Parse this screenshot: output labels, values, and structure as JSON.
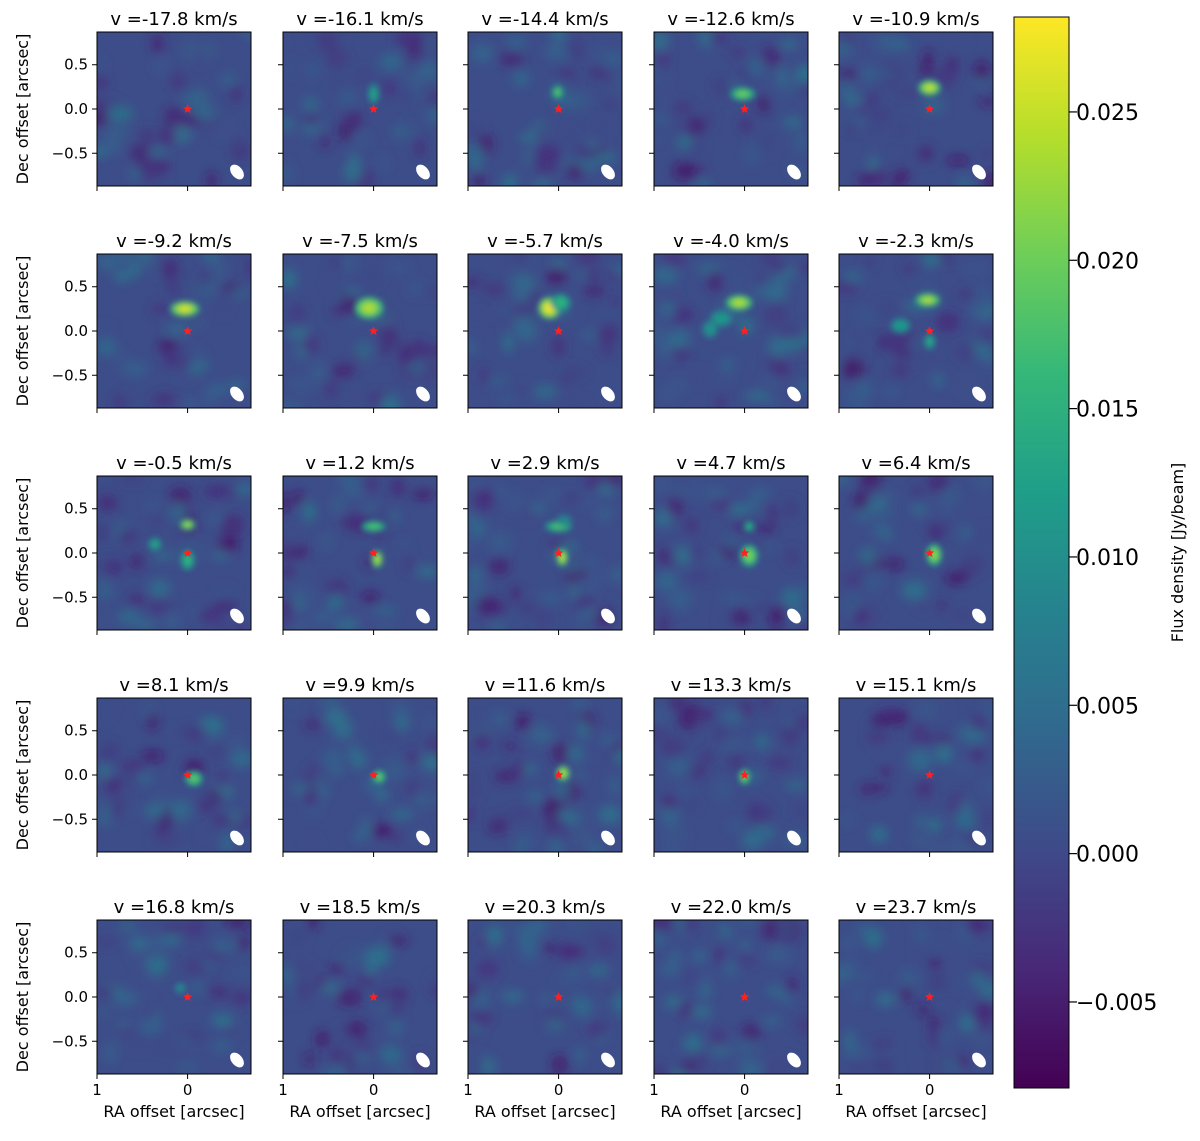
{
  "chart_data": {
    "type": "heatmap",
    "description_note": "",
    "panel_title_format": "v ={v} km/s",
    "velocities_kms": [
      "-17.8",
      "-16.1",
      "-14.4",
      "-12.6",
      "-10.9",
      "-9.2",
      "-7.5",
      "-5.7",
      "-4.0",
      "-2.3",
      "-0.5",
      "1.2",
      "2.9",
      "4.7",
      "6.4",
      "8.1",
      "9.9",
      "11.6",
      "13.3",
      "15.1",
      "16.8",
      "18.5",
      "20.3",
      "22.0",
      "23.7"
    ],
    "grid": {
      "rows": 5,
      "cols": 5
    },
    "xlabel": "RA offset [arcsec]",
    "ylabel": "Dec offset [arcsec]",
    "xlim": [
      1.0,
      -0.7
    ],
    "ylim": [
      -0.87,
      0.87
    ],
    "xticks": [
      1,
      0
    ],
    "xtick_labels": [
      "1",
      "0"
    ],
    "yticks": [
      0.5,
      0.0,
      -0.5
    ],
    "ytick_labels": [
      "0.5",
      "0.0",
      "−0.5"
    ],
    "colorbar": {
      "label": "Flux density [Jy/beam]",
      "colormap": "viridis",
      "vmin": -0.0079,
      "vmax": 0.0282,
      "ticks": [
        0.025,
        0.02,
        0.015,
        0.01,
        0.005,
        0.0,
        -0.005
      ],
      "tick_labels": [
        "0.025",
        "0.020",
        "0.015",
        "0.010",
        "0.005",
        "0.000",
        "−0.005"
      ]
    },
    "marker": {
      "symbol": "star",
      "color": "#ff2020",
      "position_arcsec": [
        0,
        0
      ]
    },
    "beam": {
      "color": "#ffffff",
      "position": "bottom-right"
    },
    "emission_blobs": [
      [],
      [
        {
          "x": 0.0,
          "y": 0.17,
          "a": 0.05,
          "b": 0.09,
          "amp": 0.013
        }
      ],
      [
        {
          "x": 0.01,
          "y": 0.19,
          "a": 0.05,
          "b": 0.06,
          "amp": 0.019
        }
      ],
      [
        {
          "x": 0.02,
          "y": 0.17,
          "a": 0.11,
          "b": 0.06,
          "amp": 0.02
        }
      ],
      [
        {
          "x": 0.0,
          "y": 0.24,
          "a": 0.1,
          "b": 0.07,
          "amp": 0.025
        }
      ],
      [
        {
          "x": 0.03,
          "y": 0.25,
          "a": 0.13,
          "b": 0.07,
          "amp": 0.026
        }
      ],
      [
        {
          "x": 0.05,
          "y": 0.26,
          "a": 0.13,
          "b": 0.1,
          "amp": 0.024
        }
      ],
      [
        {
          "x": 0.1,
          "y": 0.26,
          "a": 0.1,
          "b": 0.1,
          "amp": 0.028
        },
        {
          "x": -0.02,
          "y": 0.32,
          "a": 0.09,
          "b": 0.08,
          "amp": 0.016
        }
      ],
      [
        {
          "x": 0.06,
          "y": 0.32,
          "a": 0.12,
          "b": 0.07,
          "amp": 0.024
        },
        {
          "x": 0.26,
          "y": 0.14,
          "a": 0.1,
          "b": 0.07,
          "amp": 0.012
        },
        {
          "x": 0.38,
          "y": 0.02,
          "a": 0.07,
          "b": 0.08,
          "amp": 0.011
        }
      ],
      [
        {
          "x": 0.02,
          "y": 0.35,
          "a": 0.11,
          "b": 0.06,
          "amp": 0.024
        },
        {
          "x": 0.32,
          "y": 0.06,
          "a": 0.09,
          "b": 0.07,
          "amp": 0.012
        },
        {
          "x": 0.0,
          "y": -0.12,
          "a": 0.05,
          "b": 0.07,
          "amp": 0.014
        }
      ],
      [
        {
          "x": 0.0,
          "y": 0.32,
          "a": 0.07,
          "b": 0.05,
          "amp": 0.023
        },
        {
          "x": 0.0,
          "y": -0.08,
          "a": 0.06,
          "b": 0.09,
          "amp": 0.016
        },
        {
          "x": 0.36,
          "y": 0.1,
          "a": 0.06,
          "b": 0.06,
          "amp": 0.013
        }
      ],
      [
        {
          "x": 0.0,
          "y": 0.3,
          "a": 0.11,
          "b": 0.05,
          "amp": 0.018
        },
        {
          "x": -0.04,
          "y": -0.07,
          "a": 0.05,
          "b": 0.08,
          "amp": 0.024
        }
      ],
      [
        {
          "x": 0.0,
          "y": 0.3,
          "a": 0.12,
          "b": 0.05,
          "amp": 0.018
        },
        {
          "x": -0.06,
          "y": 0.37,
          "a": 0.07,
          "b": 0.05,
          "amp": 0.01
        },
        {
          "x": -0.04,
          "y": -0.05,
          "a": 0.05,
          "b": 0.08,
          "amp": 0.025
        }
      ],
      [
        {
          "x": -0.05,
          "y": 0.3,
          "a": 0.05,
          "b": 0.05,
          "amp": 0.015
        },
        {
          "x": -0.05,
          "y": -0.03,
          "a": 0.08,
          "b": 0.1,
          "amp": 0.021
        }
      ],
      [
        {
          "x": -0.05,
          "y": -0.02,
          "a": 0.07,
          "b": 0.1,
          "amp": 0.022
        }
      ],
      [
        {
          "x": -0.07,
          "y": -0.04,
          "a": 0.08,
          "b": 0.07,
          "amp": 0.019
        }
      ],
      [
        {
          "x": -0.06,
          "y": -0.02,
          "a": 0.06,
          "b": 0.06,
          "amp": 0.02
        }
      ],
      [
        {
          "x": -0.05,
          "y": 0.02,
          "a": 0.06,
          "b": 0.07,
          "amp": 0.024
        }
      ],
      [
        {
          "x": 0.0,
          "y": -0.02,
          "a": 0.05,
          "b": 0.07,
          "amp": 0.021
        }
      ],
      [],
      [
        {
          "x": 0.08,
          "y": 0.1,
          "a": 0.05,
          "b": 0.05,
          "amp": 0.01
        }
      ],
      [],
      [],
      [],
      []
    ]
  }
}
